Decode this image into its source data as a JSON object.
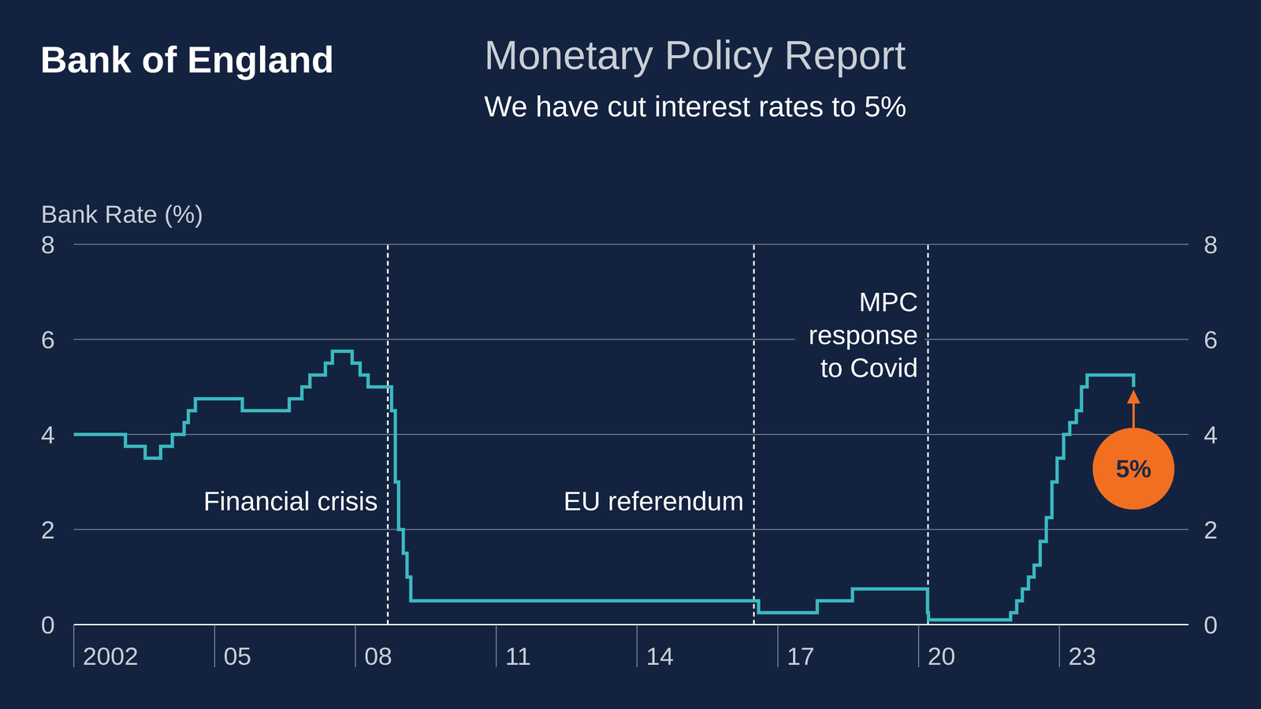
{
  "chart_data": {
    "type": "line",
    "brand": "Bank of England",
    "title": "Monetary Policy Report",
    "subtitle": "We have cut interest rates to 5%",
    "y_label": "Bank Rate (%)",
    "x": [
      2002.0,
      2003.1,
      2003.52,
      2003.85,
      2004.1,
      2004.35,
      2004.44,
      2004.59,
      2005.59,
      2006.59,
      2006.86,
      2007.03,
      2007.36,
      2007.51,
      2007.93,
      2008.1,
      2008.27,
      2008.77,
      2008.85,
      2008.92,
      2009.02,
      2009.1,
      2009.18,
      2016.59,
      2017.84,
      2018.59,
      2020.19,
      2020.21,
      2021.96,
      2022.09,
      2022.21,
      2022.34,
      2022.46,
      2022.59,
      2022.72,
      2022.84,
      2022.95,
      2023.09,
      2023.22,
      2023.36,
      2023.47,
      2023.59,
      2024.58
    ],
    "values": [
      4.0,
      3.75,
      3.5,
      3.75,
      4.0,
      4.25,
      4.5,
      4.75,
      4.5,
      4.75,
      5.0,
      5.25,
      5.5,
      5.75,
      5.5,
      5.25,
      5.0,
      4.5,
      3.0,
      2.0,
      1.5,
      1.0,
      0.5,
      0.25,
      0.5,
      0.75,
      0.25,
      0.1,
      0.25,
      0.5,
      0.75,
      1.0,
      1.25,
      1.75,
      2.25,
      3.0,
      3.5,
      4.0,
      4.25,
      4.5,
      5.0,
      5.25,
      5.0
    ],
    "color": "#3bb9c1",
    "line_style": "step",
    "xlim": [
      2002,
      2025.75
    ],
    "xticks": [
      2002,
      {
        "value": 2005,
        "label": "05"
      },
      {
        "value": 2008,
        "label": "08"
      },
      {
        "value": 2011,
        "label": "11"
      },
      {
        "value": 2014,
        "label": "14"
      },
      {
        "value": 2017,
        "label": "17"
      },
      {
        "value": 2020,
        "label": "20"
      },
      {
        "value": 2023,
        "label": "23"
      }
    ],
    "ylim": [
      0,
      8
    ],
    "yticks": [
      0,
      2,
      4,
      6,
      8
    ],
    "y2lim": [
      0,
      8
    ],
    "y2ticks": [
      0,
      2,
      4,
      6,
      8
    ],
    "grid": true,
    "annotations": [
      {
        "x": 2008.69,
        "label": [
          "Financial crisis"
        ]
      },
      {
        "x": 2016.49,
        "label": [
          "EU referendum"
        ]
      },
      {
        "x": 2020.2,
        "label": [
          "MPC",
          "response",
          "to Covid"
        ]
      }
    ],
    "callout": {
      "text": "5%",
      "x": 2024.58,
      "y": 5
    }
  }
}
